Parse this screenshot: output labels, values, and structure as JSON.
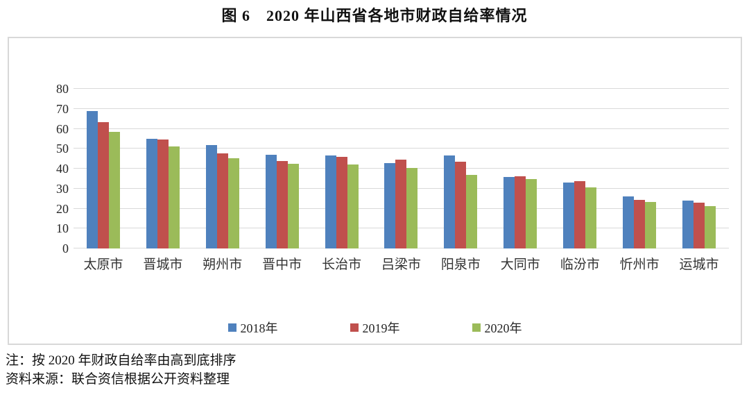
{
  "title": "图 6　2020 年山西省各地市财政自给率情况",
  "notes": {
    "line1": "注：按 2020 年财政自给率由高到底排序",
    "line2": "资料来源：联合资信根据公开资料整理"
  },
  "chart_data": {
    "type": "bar",
    "title": "图 6　2020 年山西省各地市财政自给率情况",
    "categories": [
      "太原市",
      "晋城市",
      "朔州市",
      "晋中市",
      "长治市",
      "吕梁市",
      "阳泉市",
      "大同市",
      "临汾市",
      "忻州市",
      "运城市"
    ],
    "series": [
      {
        "name": "2018年",
        "color": "#4F81BD",
        "values": [
          68.8,
          54.8,
          51.9,
          46.9,
          46.6,
          42.8,
          46.5,
          36.0,
          32.9,
          26.0,
          23.9
        ]
      },
      {
        "name": "2019年",
        "color": "#C0504D",
        "values": [
          63.2,
          54.7,
          47.7,
          43.9,
          45.8,
          44.7,
          43.5,
          36.1,
          33.6,
          24.2,
          23.1
        ]
      },
      {
        "name": "2020年",
        "color": "#9BBB59",
        "values": [
          58.4,
          51.1,
          45.1,
          42.3,
          42.1,
          40.5,
          36.8,
          34.7,
          30.7,
          23.3,
          21.1
        ]
      }
    ],
    "xlabel": "",
    "ylabel": "",
    "ylim": [
      0,
      80
    ],
    "ytick_step": 10,
    "grid": true,
    "legend_position": "bottom"
  },
  "colors": {
    "grid": "#d9d9d9",
    "frame": "#d8d8d8",
    "text": "#262626"
  }
}
